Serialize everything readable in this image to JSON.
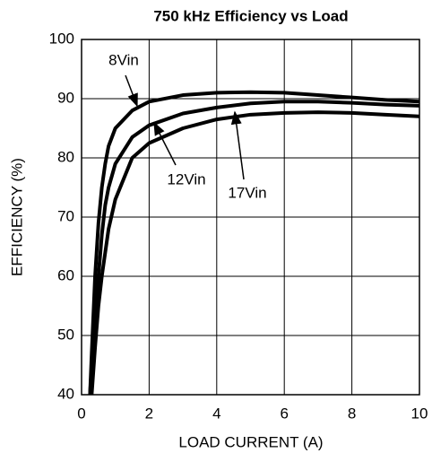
{
  "chart_data": {
    "type": "line",
    "title": "750 kHz Efficiency vs Load",
    "xlabel": "LOAD CURRENT (A)",
    "ylabel": "EFFICIENCY (%)",
    "x": [
      0.25,
      0.3,
      0.4,
      0.5,
      0.6,
      0.7,
      0.8,
      1,
      1.5,
      2,
      3,
      4,
      5,
      6,
      7,
      8,
      9,
      10
    ],
    "series": [
      {
        "name": "8Vin",
        "color": "#000000",
        "values": [
          40,
          47,
          60,
          69,
          75,
          79,
          82,
          85,
          88,
          89.5,
          90.6,
          91,
          91.1,
          91,
          90.6,
          90.2,
          89.8,
          89.5
        ]
      },
      {
        "name": "12Vin",
        "color": "#000000",
        "values": [
          40,
          45,
          54,
          60,
          67,
          72,
          75,
          79,
          83.5,
          85.5,
          87.5,
          88.5,
          89.2,
          89.5,
          89.5,
          89.3,
          89,
          88.8
        ]
      },
      {
        "name": "17Vin",
        "color": "#000000",
        "values": [
          null,
          40,
          48,
          55,
          60,
          64,
          68,
          73,
          80,
          82.5,
          85,
          86.5,
          87.3,
          87.6,
          87.7,
          87.6,
          87.3,
          87
        ]
      }
    ],
    "xlim": [
      0,
      10
    ],
    "xticks": [
      0,
      2,
      4,
      6,
      8,
      10
    ],
    "ylim": [
      40,
      100
    ],
    "yticks": [
      40,
      50,
      60,
      70,
      80,
      90,
      100
    ],
    "grid": true
  }
}
